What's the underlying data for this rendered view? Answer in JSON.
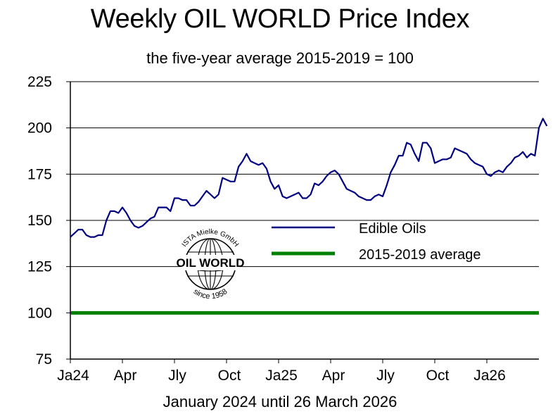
{
  "chart_data": {
    "type": "line",
    "title": "Weekly OIL WORLD Price Index",
    "subtitle": "the five-year average 2015-2019 = 100",
    "xlabel": "January 2024 until 26 March 2026",
    "ylabel": "",
    "ylim": [
      75,
      225
    ],
    "yticks": [
      75,
      100,
      125,
      150,
      175,
      200,
      225
    ],
    "xlim": [
      0,
      117
    ],
    "x_tick_labels": [
      {
        "label": "Ja24",
        "week": 0
      },
      {
        "label": "Apr",
        "week": 13
      },
      {
        "label": "Jly",
        "week": 26
      },
      {
        "label": "Oct",
        "week": 39
      },
      {
        "label": "Ja25",
        "week": 52
      },
      {
        "label": "Apr",
        "week": 65
      },
      {
        "label": "Jly",
        "week": 78
      },
      {
        "label": "Oct",
        "week": 91
      },
      {
        "label": "Ja26",
        "week": 104
      }
    ],
    "grid": "horizontal",
    "legend_placement": "center-right",
    "series": [
      {
        "name": "Edible Oils",
        "color": "#000080",
        "values": [
          141,
          143,
          145,
          145,
          142,
          141,
          141,
          142,
          142,
          150,
          155,
          155,
          154,
          157,
          154,
          150,
          147,
          146,
          147,
          149,
          151,
          152,
          157,
          157,
          157,
          155,
          162,
          162,
          161,
          161,
          158,
          158,
          160,
          163,
          166,
          164,
          162,
          164,
          173,
          172,
          171,
          171,
          179,
          182,
          186,
          182,
          181,
          180,
          181,
          178,
          171,
          167,
          169,
          163,
          162,
          163,
          164,
          165,
          162,
          162,
          164,
          170,
          169,
          171,
          174,
          176,
          177,
          175,
          171,
          167,
          166,
          165,
          163,
          162,
          161,
          161,
          163,
          164,
          163,
          169,
          176,
          180,
          185,
          185,
          192,
          191,
          186,
          182,
          192,
          192,
          189,
          181,
          182,
          183,
          183,
          184,
          189,
          188,
          187,
          186,
          183,
          181,
          180,
          179,
          175,
          174,
          176,
          177,
          176,
          179,
          181,
          184,
          185,
          187,
          184,
          186,
          185,
          200,
          205,
          201
        ]
      },
      {
        "name": "2015-2019 average",
        "color": "#008000",
        "constant": 100
      }
    ]
  },
  "logo": {
    "top_text": "ISTA Mielke GmbH",
    "band_text": "OIL WORLD",
    "bottom_text": "since 1958"
  }
}
